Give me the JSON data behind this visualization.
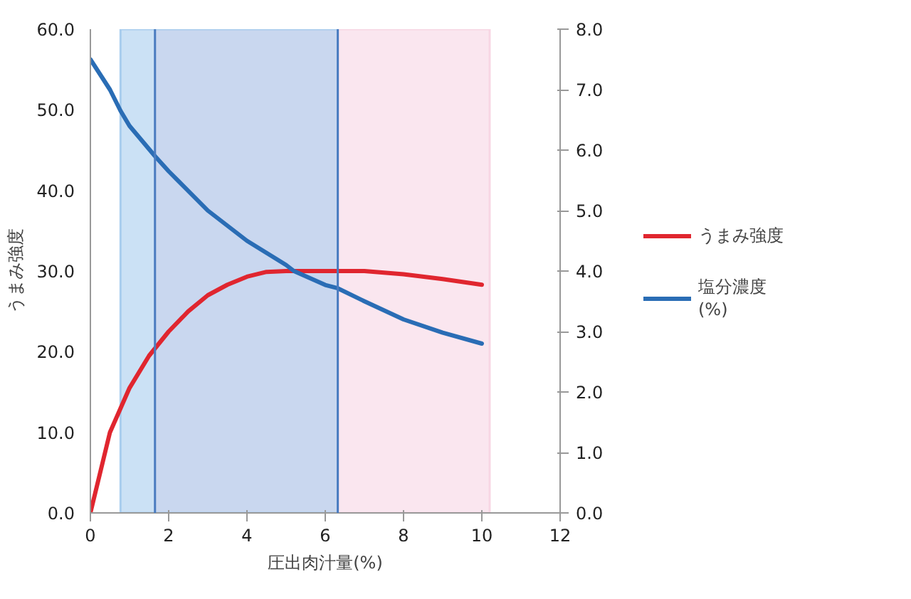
{
  "chart_data": {
    "type": "line",
    "xlabel": "圧出肉汁量(%)",
    "ylabel": "うまみ強度",
    "xlim": [
      0,
      12
    ],
    "xticks": [
      0,
      2,
      4,
      6,
      8,
      10,
      12
    ],
    "ylim": [
      0,
      60
    ],
    "yticks": [
      {
        "value": 0,
        "label": "0.0"
      },
      {
        "value": 10,
        "label": "10.0"
      },
      {
        "value": 20,
        "label": "20.0"
      },
      {
        "value": 30,
        "label": "30.0"
      },
      {
        "value": 40,
        "label": "40.0"
      },
      {
        "value": 50,
        "label": "50.0"
      },
      {
        "value": 60,
        "label": "60.0"
      }
    ],
    "y2lim": [
      0,
      8
    ],
    "y2ticks": [
      {
        "value": 0,
        "label": "0.0"
      },
      {
        "value": 1,
        "label": "1.0"
      },
      {
        "value": 2,
        "label": "2.0"
      },
      {
        "value": 3,
        "label": "3.0"
      },
      {
        "value": 4,
        "label": "4.0"
      },
      {
        "value": 5,
        "label": "5.0"
      },
      {
        "value": 6,
        "label": "6.0"
      },
      {
        "value": 7,
        "label": "7.0"
      },
      {
        "value": 8,
        "label": "8.0"
      }
    ],
    "series": [
      {
        "name": "うまみ強度",
        "color": "#e0262f",
        "x": [
          0,
          0.5,
          1,
          1.5,
          2,
          2.5,
          3,
          3.5,
          4,
          4.5,
          5,
          6,
          7,
          8,
          9,
          10
        ],
        "values": [
          0,
          10,
          15.5,
          19.5,
          22.5,
          25,
          27,
          28.3,
          29.3,
          29.9,
          30,
          30,
          30,
          29.6,
          29,
          28.3
        ]
      },
      {
        "name": "塩分濃度\n(%)",
        "color": "#2a6db5",
        "axis": "y2",
        "x": [
          0,
          0.5,
          0.77,
          1,
          1.65,
          2,
          3,
          4,
          5,
          5.2,
          6,
          6.3,
          7,
          8,
          9,
          10
        ],
        "values": [
          7.5,
          7.0,
          6.65,
          6.4,
          5.9,
          5.65,
          5.0,
          4.5,
          4.1,
          4.0,
          3.77,
          3.72,
          3.5,
          3.2,
          2.98,
          2.8
        ]
      }
    ],
    "bands": [
      {
        "axis": "x",
        "from": 1.65,
        "to": 10.2,
        "color": "#f7d6e4"
      },
      {
        "axis": "x",
        "from": 0.77,
        "to": 6.32,
        "color": "#a9cdee"
      }
    ],
    "ref_lines": [
      {
        "axis": "x",
        "value": 1.65,
        "color": "#4a7cc0"
      },
      {
        "axis": "x",
        "value": 6.32,
        "color": "#4a7cc0"
      }
    ],
    "legend": "right",
    "grid": false,
    "line_style": "solid",
    "marker": "none"
  }
}
